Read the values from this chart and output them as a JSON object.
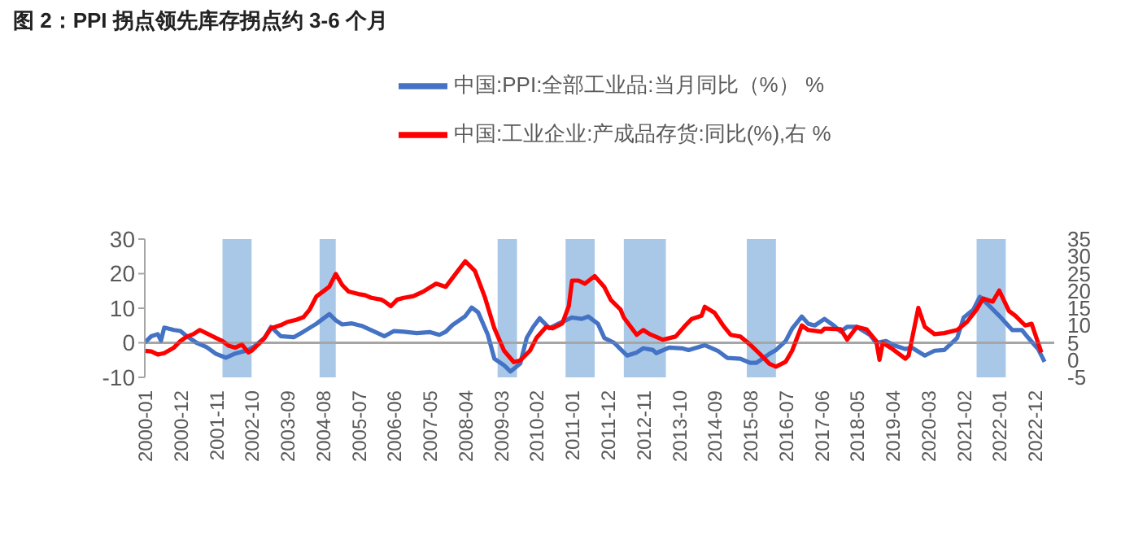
{
  "chart_data": {
    "type": "line",
    "title": "图 2：PPI 拐点领先库存拐点约 3-6 个月",
    "xlim": [
      "2000-01",
      "2023-06"
    ],
    "xticks": [
      "2000-01",
      "2000-12",
      "2001-11",
      "2002-10",
      "2003-09",
      "2004-08",
      "2005-07",
      "2006-06",
      "2007-05",
      "2008-04",
      "2009-03",
      "2010-02",
      "2011-01",
      "2011-12",
      "2012-11",
      "2013-10",
      "2014-09",
      "2015-08",
      "2016-07",
      "2017-06",
      "2018-05",
      "2019-04",
      "2020-03",
      "2021-02",
      "2022-01",
      "2022-12"
    ],
    "ylim": [
      -10,
      30
    ],
    "yticks": [
      -10,
      0,
      10,
      20,
      30
    ],
    "y2lim": [
      -5,
      35
    ],
    "y2ticks": [
      -5,
      0,
      5,
      10,
      15,
      20,
      25,
      30,
      35
    ],
    "legend": "top",
    "series": [
      {
        "name": "中国:PPI:全部工业品:当月同比（%） %",
        "color": "#4472c4",
        "x": [
          "2000-01",
          "2000-03",
          "2000-05",
          "2000-06",
          "2000-07",
          "2000-10",
          "2000-12",
          "2001-02",
          "2001-05",
          "2001-08",
          "2001-11",
          "2002-02",
          "2002-05",
          "2002-09",
          "2002-11",
          "2003-02",
          "2003-04",
          "2003-07",
          "2003-11",
          "2004-02",
          "2004-06",
          "2004-08",
          "2004-10",
          "2004-12",
          "2005-02",
          "2005-05",
          "2005-08",
          "2005-12",
          "2006-03",
          "2006-06",
          "2006-09",
          "2007-01",
          "2007-05",
          "2007-08",
          "2007-10",
          "2007-12",
          "2008-04",
          "2008-06",
          "2008-08",
          "2008-11",
          "2009-01",
          "2009-04",
          "2009-06",
          "2009-09",
          "2009-11",
          "2010-01",
          "2010-03",
          "2010-06",
          "2010-09",
          "2011-01",
          "2011-04",
          "2011-06",
          "2011-09",
          "2011-11",
          "2012-02",
          "2012-06",
          "2012-09",
          "2012-11",
          "2013-02",
          "2013-03",
          "2013-07",
          "2013-11",
          "2014-01",
          "2014-06",
          "2014-10",
          "2015-01",
          "2015-05",
          "2015-08",
          "2015-10",
          "2016-02",
          "2016-04",
          "2016-07",
          "2016-09",
          "2016-12",
          "2017-02",
          "2017-04",
          "2017-07",
          "2017-10",
          "2017-12",
          "2018-02",
          "2018-05",
          "2018-09",
          "2018-11",
          "2019-02",
          "2019-05",
          "2019-08",
          "2019-10",
          "2020-02",
          "2020-05",
          "2020-08",
          "2020-12",
          "2021-02",
          "2021-05",
          "2021-07",
          "2021-10",
          "2022-01",
          "2022-05",
          "2022-08",
          "2022-10",
          "2023-01",
          "2023-03"
        ],
        "values": [
          0.0,
          1.9,
          2.5,
          0.6,
          4.4,
          3.7,
          3.4,
          1.9,
          0.0,
          -1.2,
          -3.2,
          -4.3,
          -3.1,
          -2.1,
          -0.9,
          1.4,
          4.6,
          1.9,
          1.6,
          3.2,
          5.5,
          6.9,
          8.3,
          6.5,
          5.3,
          5.6,
          4.9,
          3.2,
          1.9,
          3.4,
          3.2,
          2.8,
          3.1,
          2.3,
          3.2,
          5.1,
          7.7,
          10.2,
          8.8,
          2.3,
          -4.6,
          -6.5,
          -8.3,
          -6.0,
          1.4,
          4.6,
          7.1,
          4.2,
          5.6,
          7.3,
          6.9,
          7.6,
          5.5,
          1.4,
          0.0,
          -3.7,
          -2.8,
          -1.6,
          -2.1,
          -3.0,
          -1.4,
          -1.6,
          -2.1,
          -0.7,
          -2.3,
          -4.4,
          -4.6,
          -5.8,
          -5.8,
          -3.2,
          -2.1,
          0.5,
          4.1,
          7.6,
          5.5,
          5.0,
          6.9,
          4.9,
          3.2,
          4.6,
          4.6,
          2.3,
          0.0,
          0.5,
          -0.9,
          -1.8,
          -1.4,
          -3.7,
          -2.3,
          -2.1,
          1.4,
          7.3,
          9.6,
          13.3,
          10.6,
          7.8,
          3.7,
          3.7,
          1.4,
          -1.8,
          -5.5
        ]
      },
      {
        "name": "中国:工业企业:产成品存货:同比(%),右 %",
        "color": "#ff0000",
        "axis": "y2",
        "x": [
          "2000-01",
          "2000-03",
          "2000-05",
          "2000-07",
          "2000-10",
          "2000-12",
          "2001-02",
          "2001-04",
          "2001-06",
          "2001-11",
          "2002-01",
          "2002-03",
          "2002-05",
          "2002-07",
          "2002-09",
          "2002-10",
          "2002-12",
          "2003-02",
          "2003-04",
          "2003-07",
          "2003-09",
          "2003-12",
          "2004-02",
          "2004-04",
          "2004-06",
          "2004-08",
          "2004-10",
          "2004-12",
          "2005-02",
          "2005-04",
          "2005-07",
          "2005-09",
          "2005-11",
          "2006-02",
          "2006-03",
          "2006-05",
          "2006-07",
          "2006-09",
          "2006-12",
          "2007-03",
          "2007-07",
          "2007-10",
          "2008-01",
          "2008-04",
          "2008-07",
          "2008-10",
          "2009-01",
          "2009-04",
          "2009-07",
          "2009-09",
          "2009-12",
          "2010-02",
          "2010-05",
          "2010-07",
          "2010-10",
          "2010-12",
          "2011-01",
          "2011-03",
          "2011-05",
          "2011-08",
          "2011-11",
          "2012-01",
          "2012-04",
          "2012-05",
          "2012-09",
          "2012-11",
          "2013-01",
          "2013-05",
          "2013-09",
          "2013-12",
          "2014-02",
          "2014-05",
          "2014-06",
          "2014-09",
          "2014-12",
          "2015-02",
          "2015-05",
          "2015-08",
          "2015-11",
          "2016-02",
          "2016-04",
          "2016-07",
          "2016-09",
          "2016-12",
          "2017-02",
          "2017-06",
          "2017-07",
          "2017-12",
          "2018-02",
          "2018-05",
          "2018-08",
          "2018-11",
          "2018-12",
          "2019-01",
          "2019-04",
          "2019-08",
          "2019-09",
          "2019-12",
          "2020-02",
          "2020-05",
          "2020-08",
          "2020-12",
          "2021-03",
          "2021-06",
          "2021-08",
          "2021-11",
          "2022-01",
          "2022-04",
          "2022-06",
          "2022-09",
          "2022-11",
          "2023-01",
          "2023-02"
        ],
        "values": [
          2.7,
          2.5,
          1.6,
          2.0,
          3.6,
          5.5,
          6.8,
          7.5,
          8.7,
          6.4,
          5.5,
          4.1,
          3.6,
          4.5,
          2.2,
          2.7,
          4.5,
          6.4,
          9.2,
          10.1,
          11.0,
          11.7,
          12.4,
          14.7,
          18.4,
          19.8,
          21.2,
          24.9,
          21.7,
          19.8,
          19.1,
          18.8,
          18.0,
          17.5,
          17.0,
          15.6,
          17.5,
          18.0,
          18.5,
          19.8,
          22.1,
          21.2,
          24.9,
          28.6,
          25.8,
          18.4,
          9.2,
          2.7,
          -0.6,
          -0.1,
          2.7,
          6.4,
          9.6,
          9.2,
          10.6,
          15.6,
          23.0,
          23.0,
          22.1,
          24.3,
          21.1,
          17.4,
          14.6,
          12.3,
          7.3,
          8.7,
          7.5,
          5.9,
          6.8,
          10.0,
          11.9,
          12.8,
          15.4,
          13.7,
          9.6,
          7.3,
          6.8,
          4.5,
          1.8,
          -1.1,
          -1.9,
          -0.5,
          2.7,
          10.0,
          8.7,
          8.2,
          9.1,
          8.9,
          5.9,
          9.6,
          8.9,
          5.5,
          0.1,
          5.0,
          3.2,
          0.4,
          1.3,
          15.1,
          9.6,
          7.5,
          7.8,
          8.7,
          11.0,
          14.6,
          17.8,
          16.9,
          20.1,
          14.2,
          12.8,
          10.0,
          10.5,
          5.0,
          2.2
        ]
      }
    ],
    "ref_lines": [
      {
        "axis": "y",
        "value": 0,
        "color": "#a6a6a6"
      }
    ],
    "bands": [
      {
        "axis": "x",
        "from": "2002-01",
        "to": "2002-10",
        "color": "#a9c8e8"
      },
      {
        "axis": "x",
        "from": "2004-07",
        "to": "2004-12",
        "color": "#a9c8e8"
      },
      {
        "axis": "x",
        "from": "2009-02",
        "to": "2009-08",
        "color": "#a9c8e8"
      },
      {
        "axis": "x",
        "from": "2010-11",
        "to": "2011-08",
        "color": "#a9c8e8"
      },
      {
        "axis": "x",
        "from": "2012-05",
        "to": "2013-06",
        "color": "#a9c8e8"
      },
      {
        "axis": "x",
        "from": "2015-07",
        "to": "2016-04",
        "color": "#a9c8e8"
      },
      {
        "axis": "x",
        "from": "2021-06",
        "to": "2022-03",
        "color": "#a9c8e8"
      }
    ]
  }
}
